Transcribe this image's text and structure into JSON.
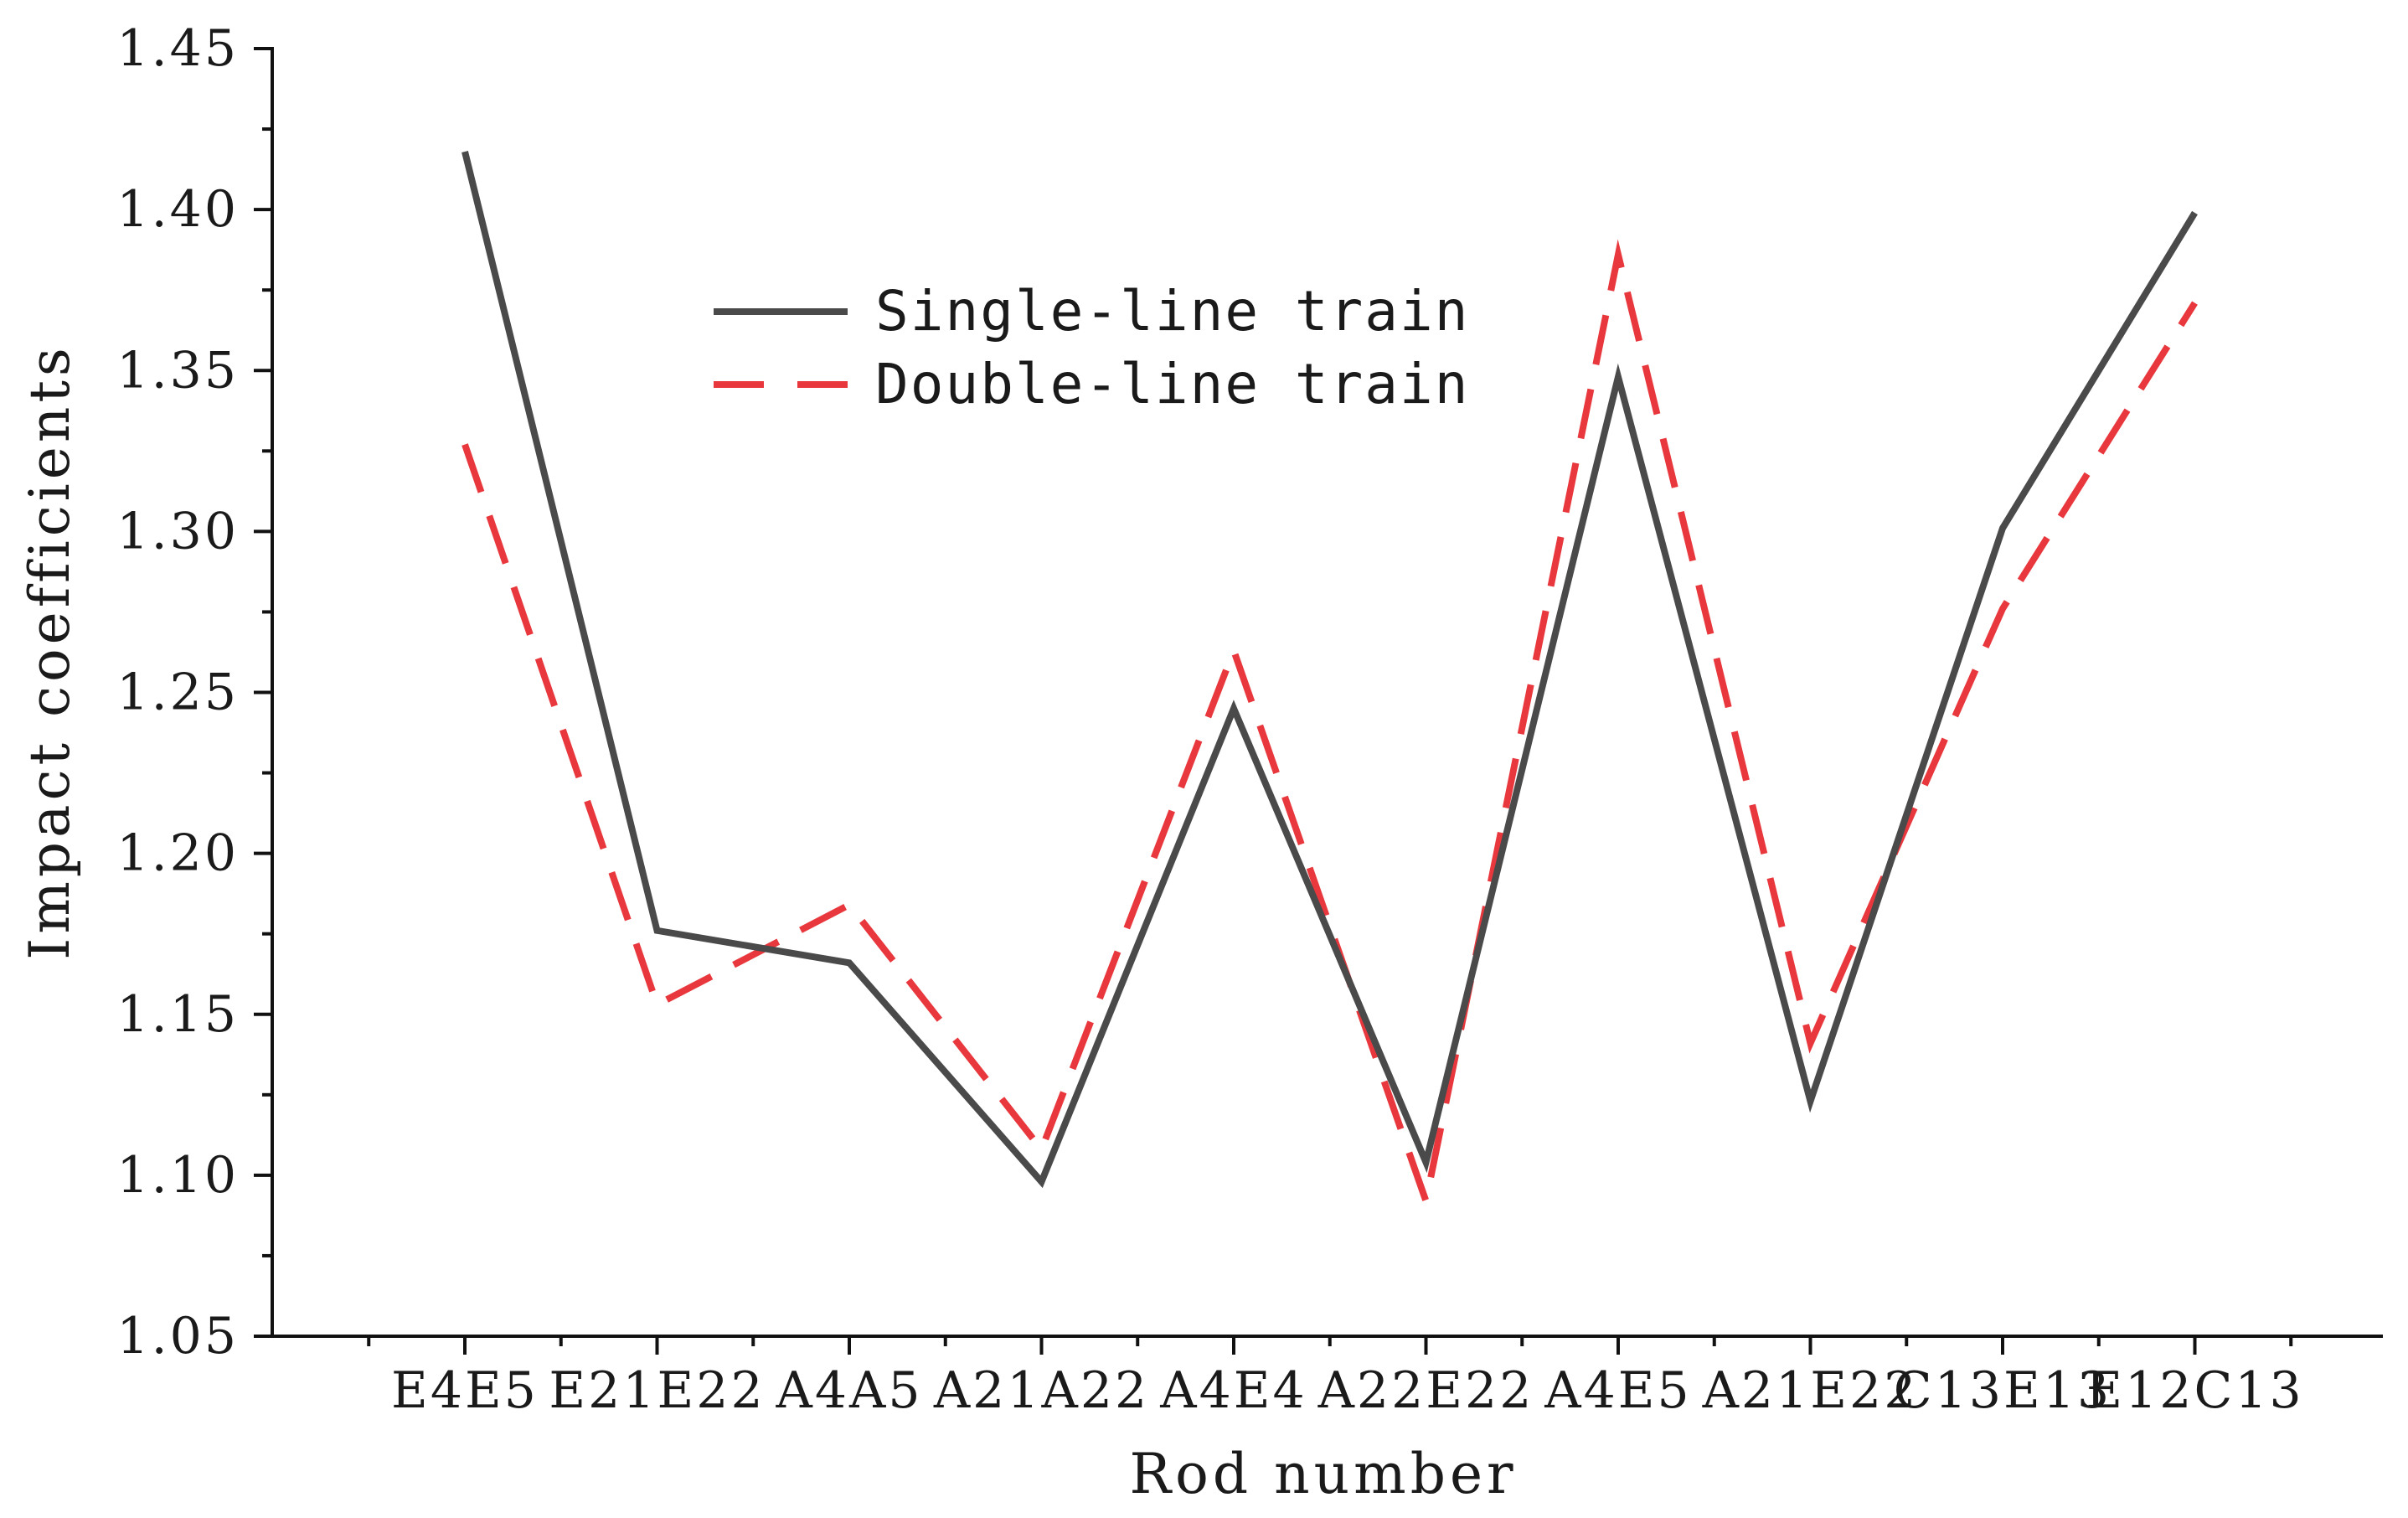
{
  "chart_data": {
    "type": "line",
    "xlabel": "Rod number",
    "ylabel": "Impact coefficients",
    "categories": [
      "E4E5",
      "E21E22",
      "A4A5",
      "A21A22",
      "A4E4",
      "A22E22",
      "A4E5",
      "A21E22",
      "C13E13",
      "E12C13"
    ],
    "ylim": [
      1.05,
      1.45
    ],
    "yticks": [
      "1.05",
      "1.10",
      "1.15",
      "1.20",
      "1.25",
      "1.30",
      "1.35",
      "1.40",
      "1.45"
    ],
    "grid": false,
    "legend_position": "upper-center",
    "series": [
      {
        "name": "Single-line train",
        "color": "#4a4a4a",
        "style": "solid",
        "values": [
          1.418,
          1.176,
          1.166,
          1.098,
          1.245,
          1.104,
          1.348,
          1.123,
          1.301,
          1.399
        ]
      },
      {
        "name": "Double-line train",
        "color": "#e8383d",
        "style": "dashed",
        "values": [
          1.327,
          1.153,
          1.184,
          1.108,
          1.263,
          1.092,
          1.386,
          1.141,
          1.276,
          1.371
        ]
      }
    ]
  }
}
